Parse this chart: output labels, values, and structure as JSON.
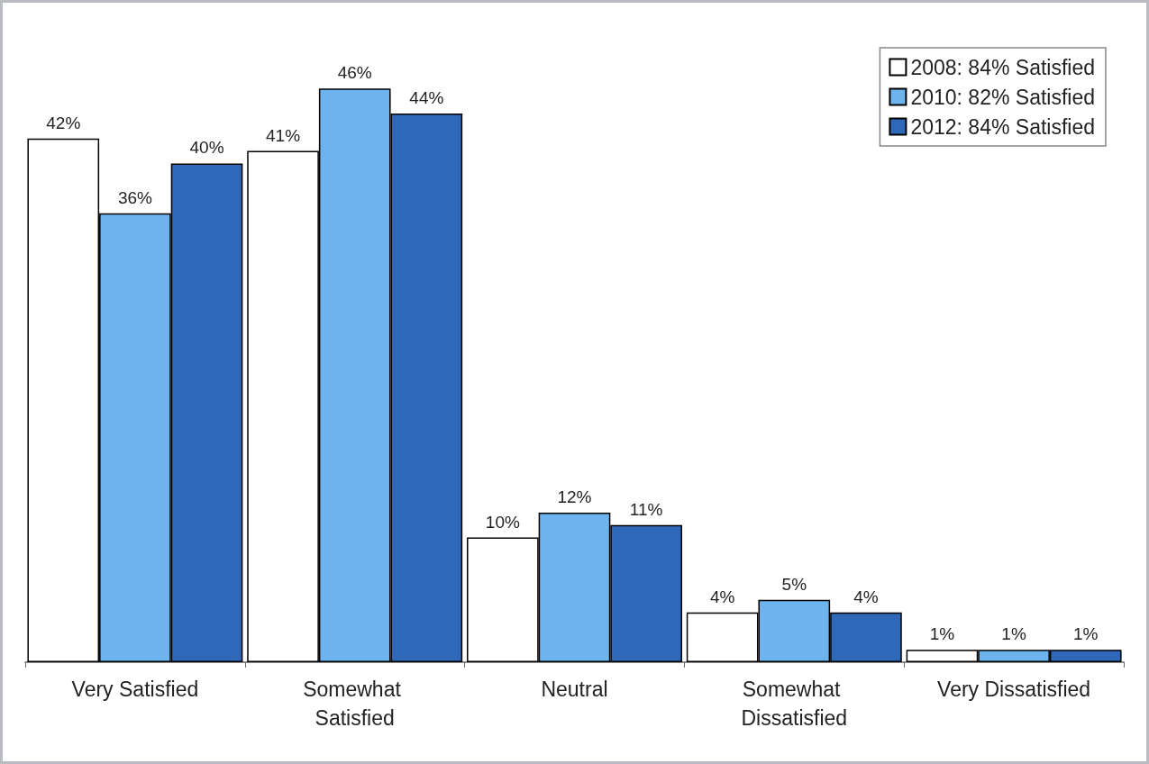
{
  "chart_data": {
    "type": "bar",
    "categories": [
      "Very Satisfied",
      "Somewhat Satisfied",
      "Neutral",
      "Somewhat Dissatisfied",
      "Very Dissatisfied"
    ],
    "series": [
      {
        "name": "2008: 84% Satisfied",
        "color": "#ffffff",
        "values": [
          42,
          41,
          10,
          4,
          1
        ],
        "value_labels": [
          "42%",
          "41%",
          "10%",
          "4%",
          "1%"
        ]
      },
      {
        "name": "2010: 82% Satisfied",
        "color": "#6db3ee",
        "values": [
          36,
          46,
          12,
          5,
          1
        ],
        "value_labels": [
          "36%",
          "46%",
          "12%",
          "5%",
          "1%"
        ]
      },
      {
        "name": "2012: 84% Satisfied",
        "color": "#2f68b9",
        "values": [
          40,
          44,
          11,
          4,
          1
        ],
        "value_labels": [
          "40%",
          "44%",
          "11%",
          "4%",
          "1%"
        ]
      }
    ],
    "legend": "top right"
  }
}
